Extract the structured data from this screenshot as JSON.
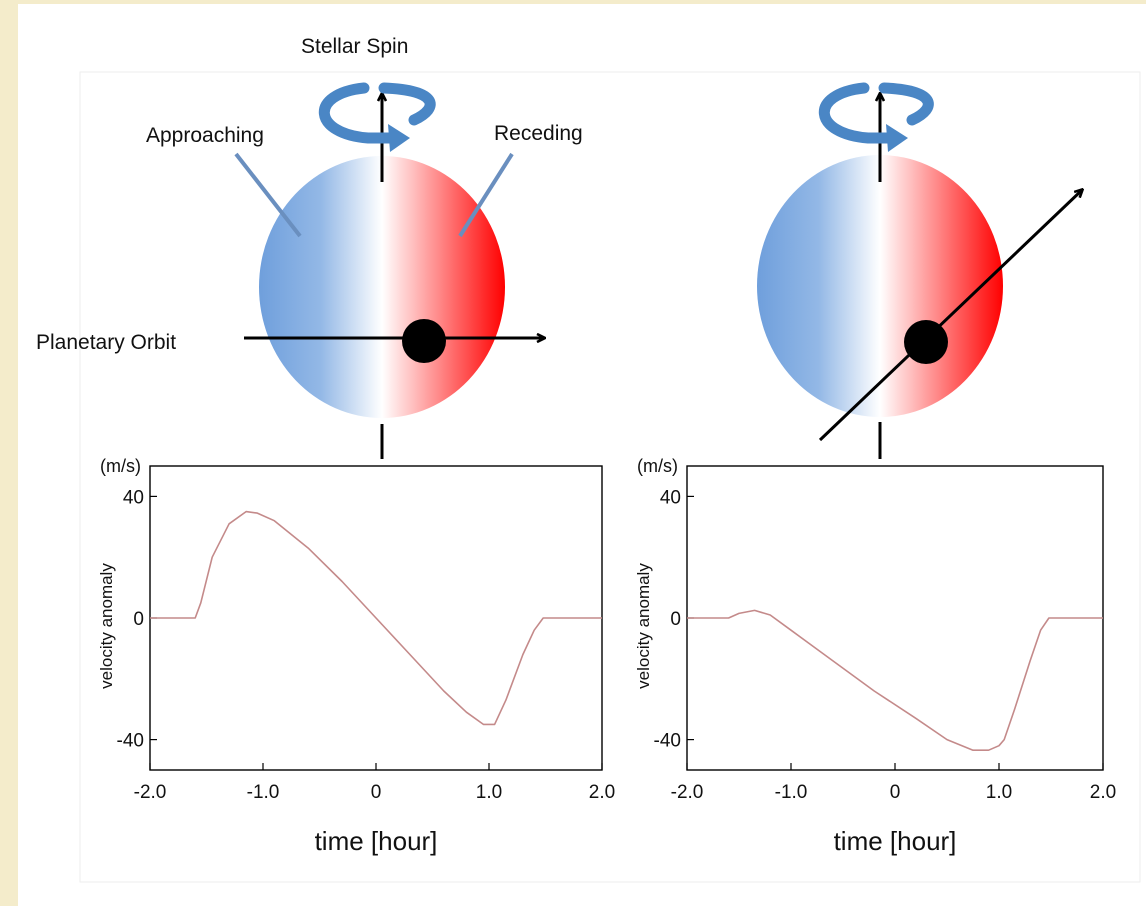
{
  "labels": {
    "stellar_spin": "Stellar Spin",
    "approaching": "Approaching",
    "receding": "Receding",
    "planetary_orbit": "Planetary Orbit"
  },
  "colors": {
    "background": "#f4eccb",
    "approaching_blue": "#6f9fdc",
    "receding_red": "#ff0000",
    "spin_arrow": "#4a86c5",
    "curve": "#c48a8a",
    "planet": "#000000"
  },
  "icons": [
    "spin-arrow-icon"
  ],
  "chart_data": [
    {
      "type": "line",
      "title": "",
      "xlabel": "time [hour]",
      "ylabel": "velocity anomaly",
      "yunit": "(m/s)",
      "xlim": [
        -2.0,
        2.0
      ],
      "ylim": [
        -50,
        50
      ],
      "xticks": [
        "-2.0",
        "-1.0",
        "0",
        "1.0",
        "2.0"
      ],
      "xtick_values": [
        -2.0,
        -1.0,
        0,
        1.0,
        2.0
      ],
      "yticks": [
        "40",
        "0",
        "-40"
      ],
      "ytick_values": [
        40,
        0,
        -40
      ],
      "grid": false,
      "series": [
        {
          "x": [
            -2.0,
            -1.6,
            -1.55,
            -1.45,
            -1.3,
            -1.15,
            -1.05,
            -0.9,
            -0.6,
            -0.3,
            0,
            0.3,
            0.6,
            0.8,
            0.95,
            1.05,
            1.15,
            1.3,
            1.4,
            1.48,
            1.5,
            2.0
          ],
          "y": [
            0,
            0,
            5,
            20,
            31,
            35,
            34.5,
            32,
            23,
            12,
            0,
            -12,
            -24,
            -31,
            -35,
            -35,
            -27,
            -12,
            -4,
            0,
            0,
            0
          ]
        }
      ]
    },
    {
      "type": "line",
      "title": "",
      "xlabel": "time [hour]",
      "ylabel": "velocity anomaly",
      "yunit": "(m/s)",
      "xlim": [
        -2.0,
        2.0
      ],
      "ylim": [
        -50,
        50
      ],
      "xticks": [
        "-2.0",
        "-1.0",
        "0",
        "1.0",
        "2.0"
      ],
      "xtick_values": [
        -2.0,
        -1.0,
        0,
        1.0,
        2.0
      ],
      "yticks": [
        "40",
        "0",
        "-40"
      ],
      "ytick_values": [
        40,
        0,
        -40
      ],
      "grid": false,
      "series": [
        {
          "x": [
            -2.0,
            -1.6,
            -1.5,
            -1.35,
            -1.2,
            -1.0,
            -0.6,
            -0.2,
            0.2,
            0.5,
            0.75,
            0.9,
            1.0,
            1.05,
            1.15,
            1.3,
            1.4,
            1.48,
            1.5,
            2.0
          ],
          "y": [
            0,
            0,
            1.5,
            2.5,
            1,
            -4,
            -14,
            -24,
            -33,
            -40,
            -43.5,
            -43.5,
            -42,
            -40,
            -30,
            -14,
            -4,
            0,
            0,
            0
          ]
        }
      ]
    }
  ]
}
